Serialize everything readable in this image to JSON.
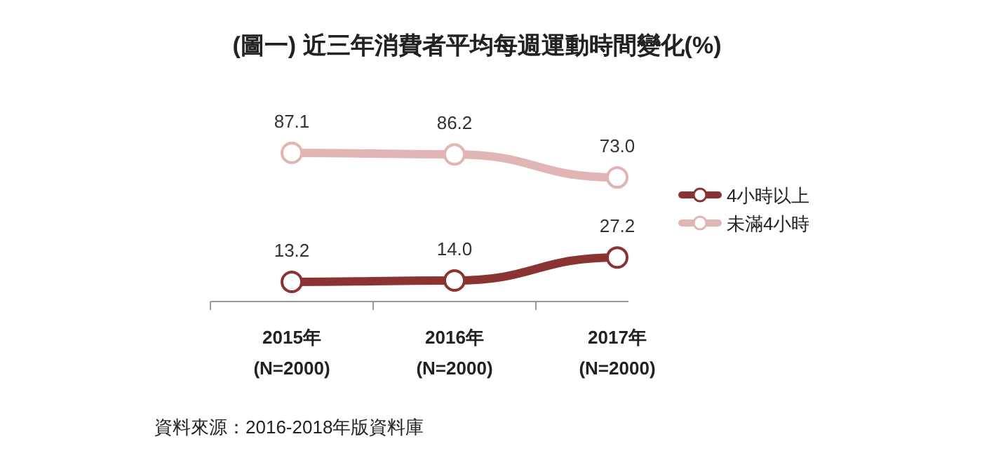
{
  "chart_data": {
    "type": "line",
    "title": "(圖一) 近三年消費者平均每週運動時間變化(%)",
    "categories": [
      "2015年\n(N=2000)",
      "2016年\n(N=2000)",
      "2017年\n(N=2000)"
    ],
    "series": [
      {
        "name": "4小時以上",
        "color": "#8b3333",
        "values": [
          13.2,
          14.0,
          27.2
        ],
        "value_labels": [
          "13.2",
          "14.0",
          "27.2"
        ]
      },
      {
        "name": "未滿4小時",
        "color": "#e2b5b5",
        "values": [
          87.1,
          86.2,
          73.0
        ],
        "value_labels": [
          "87.1",
          "86.2",
          "73.0"
        ]
      }
    ],
    "tick_labels": "x",
    "marker": "circle",
    "line_style": "solid",
    "legend": "right",
    "annotations": [
      "資料來源：2016-2018年版資料庫"
    ]
  }
}
